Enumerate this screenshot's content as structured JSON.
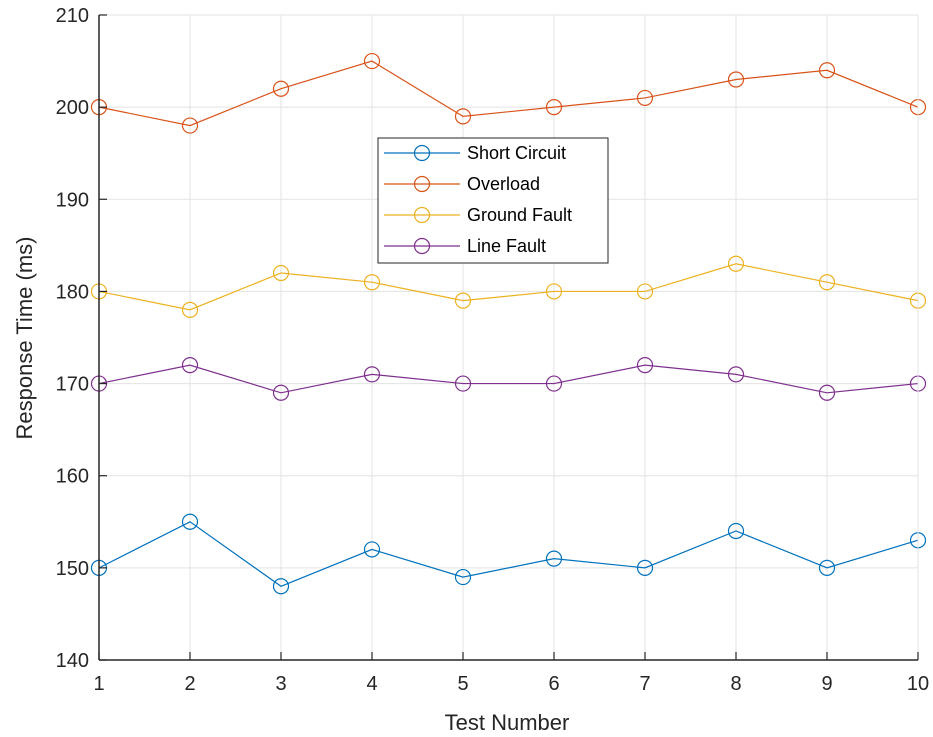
{
  "chart_data": {
    "type": "line",
    "x": [
      1,
      2,
      3,
      4,
      5,
      6,
      7,
      8,
      9,
      10
    ],
    "xlabel": "Test Number",
    "ylabel": "Response Time (ms)",
    "xlim": [
      1,
      10
    ],
    "ylim": [
      140,
      210
    ],
    "xticks": [
      1,
      2,
      3,
      4,
      5,
      6,
      7,
      8,
      9,
      10
    ],
    "yticks": [
      140,
      150,
      160,
      170,
      180,
      190,
      200,
      210
    ],
    "grid": true,
    "legend_position": "upper-center",
    "marker": "circle",
    "series": [
      {
        "name": "Short Circuit",
        "color": "#0072BD",
        "values": [
          150,
          155,
          148,
          152,
          149,
          151,
          150,
          154,
          150,
          153
        ]
      },
      {
        "name": "Overload",
        "color": "#D95319",
        "values": [
          200,
          198,
          202,
          205,
          199,
          200,
          201,
          203,
          204,
          200
        ]
      },
      {
        "name": "Ground Fault",
        "color": "#EDB120",
        "values": [
          180,
          178,
          182,
          181,
          179,
          180,
          180,
          183,
          181,
          179
        ]
      },
      {
        "name": "Line Fault",
        "color": "#7E2F8E",
        "values": [
          170,
          172,
          169,
          171,
          170,
          170,
          172,
          171,
          169,
          170
        ]
      }
    ]
  }
}
